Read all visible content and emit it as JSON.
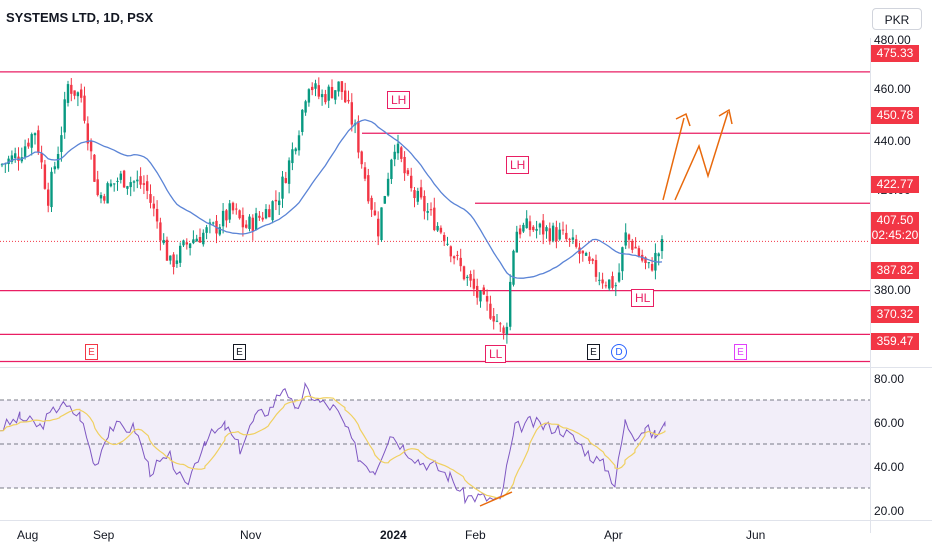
{
  "header": {
    "title": "SYSTEMS LTD, 1D, PSX",
    "currency": "PKR"
  },
  "price_axis": {
    "ticks": [
      {
        "label": "480.00",
        "value": 480
      },
      {
        "label": "460.00",
        "value": 460
      },
      {
        "label": "440.00",
        "value": 440
      },
      {
        "label": "420.00",
        "value": 420
      },
      {
        "label": "380.00",
        "value": 380
      }
    ],
    "levels": [
      {
        "label": "475.33",
        "value": 475.33
      },
      {
        "label": "450.78",
        "value": 450.78
      },
      {
        "label": "422.77",
        "value": 422.77
      },
      {
        "label": "387.82",
        "value": 387.82
      },
      {
        "label": "370.32",
        "value": 370.32
      },
      {
        "label": "359.47",
        "value": 359.47
      }
    ],
    "current_price": "407.50",
    "countdown": "02:45:20"
  },
  "rsi_axis": {
    "ticks": [
      {
        "label": "80.00",
        "value": 80
      },
      {
        "label": "60.00",
        "value": 60
      },
      {
        "label": "40.00",
        "value": 40
      },
      {
        "label": "20.00",
        "value": 20
      }
    ],
    "upper_band": 70,
    "middle_band": 50,
    "lower_band": 30
  },
  "pivot_labels": [
    "LH",
    "LH",
    "HL",
    "LL"
  ],
  "event_markers": [
    "E",
    "E",
    "E",
    "D",
    "E"
  ],
  "time_axis": [
    "Aug",
    "Sep",
    "Nov",
    "2024",
    "Feb",
    "Apr",
    "Jun"
  ],
  "colors": {
    "up_candle": "#089981",
    "down_candle": "#f23645",
    "level_line": "#e91e63",
    "ma_line": "#5b84d6",
    "rsi_line": "#7e57c2",
    "rsi_signal": "#f0d060",
    "projection": "#e8690c",
    "rsi_band_fill": "#ede7f6"
  }
}
